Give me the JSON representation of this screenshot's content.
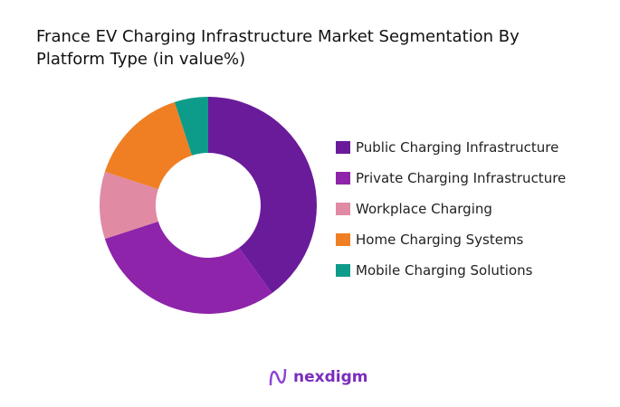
{
  "chart_data": {
    "type": "pie",
    "donut": true,
    "title": " France EV Charging Infrastructure Market Segmentation By Platform Type (in value%)",
    "categories": [
      "Public Charging Infrastructure",
      "Private Charging Infrastructure",
      "Workplace Charging",
      "Home Charging Systems",
      "Mobile Charging Solutions"
    ],
    "values": [
      40,
      30,
      10,
      15,
      5
    ],
    "colors": [
      "#6a1b9a",
      "#8e24aa",
      "#e08aa3",
      "#f07f23",
      "#0e9c8a"
    ],
    "legend_position": "right"
  },
  "brand": {
    "name": "nexdigm"
  }
}
